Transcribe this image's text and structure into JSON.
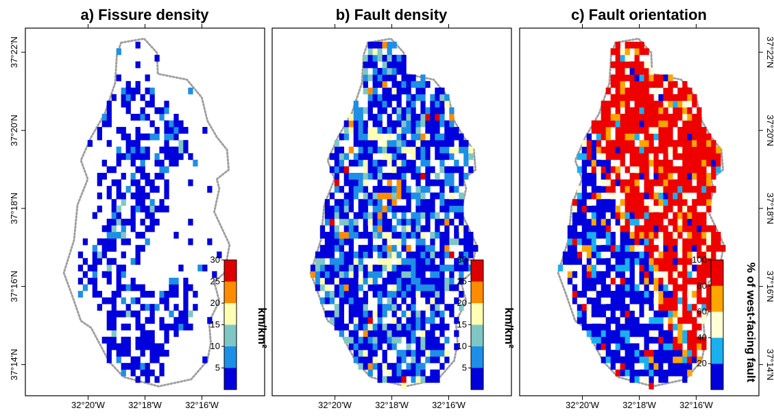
{
  "figure": {
    "x_tick_labels": [
      "32°20'W",
      "32°18'W",
      "32°16'W"
    ],
    "y_tick_labels": [
      "37°14'N",
      "37°16'N",
      "37°18'N",
      "37°20'N",
      "37°22'N"
    ]
  },
  "colors": {
    "frame": "#000000",
    "outline": "#a0a0a0",
    "density_scale": [
      "#0000dd",
      "#1e8fe6",
      "#7fc7c5",
      "#ffffb4",
      "#ff8c00",
      "#dd0000"
    ],
    "orientation_scale": [
      "#0000dd",
      "#1ab0f0",
      "#ffffd6",
      "#ffa500",
      "#ee0000"
    ]
  },
  "chart_data": [
    {
      "type": "heatmap",
      "title": "a) Fissure density",
      "xlim": [
        -32.37,
        -32.23
      ],
      "ylim": [
        37.22,
        37.377
      ],
      "x_ticks": [
        -32.3333,
        -32.3,
        -32.2667
      ],
      "y_ticks": [
        37.2333,
        37.2667,
        37.3,
        37.3333,
        37.3667
      ],
      "cell_size_deg": 0.0028,
      "colorbar": {
        "label": "km/km²",
        "ticks": [
          5,
          10,
          15,
          20,
          25,
          30
        ],
        "tick_labels": [
          "5",
          "10",
          "15",
          "20",
          "25",
          "30"
        ],
        "bins": [
          0,
          5,
          10,
          15,
          20,
          25,
          30
        ]
      },
      "survey_outline": [
        [
          -32.314,
          37.3708
        ],
        [
          -32.3005,
          37.3725
        ],
        [
          -32.293,
          37.3665
        ],
        [
          -32.2925,
          37.3575
        ],
        [
          -32.2755,
          37.355
        ],
        [
          -32.2668,
          37.3474
        ],
        [
          -32.2635,
          37.3375
        ],
        [
          -32.258,
          37.3305
        ],
        [
          -32.252,
          37.325
        ],
        [
          -32.251,
          37.3165
        ],
        [
          -32.258,
          37.3125
        ],
        [
          -32.2565,
          37.3085
        ],
        [
          -32.2595,
          37.2985
        ],
        [
          -32.2505,
          37.2845
        ],
        [
          -32.2535,
          37.2725
        ],
        [
          -32.2595,
          37.2685
        ],
        [
          -32.2565,
          37.2605
        ],
        [
          -32.2625,
          37.2515
        ],
        [
          -32.2615,
          37.2425
        ],
        [
          -32.2635,
          37.235
        ],
        [
          -32.273,
          37.227
        ],
        [
          -32.292,
          37.224
        ],
        [
          -32.3125,
          37.228
        ],
        [
          -32.321,
          37.2346
        ],
        [
          -32.3315,
          37.249
        ],
        [
          -32.3375,
          37.252
        ],
        [
          -32.3425,
          37.2625
        ],
        [
          -32.3475,
          37.2725
        ],
        [
          -32.3415,
          37.2865
        ],
        [
          -32.3395,
          37.3015
        ],
        [
          -32.3335,
          37.3125
        ],
        [
          -32.3375,
          37.3205
        ],
        [
          -32.3315,
          37.3305
        ],
        [
          -32.3235,
          37.3405
        ],
        [
          -32.3175,
          37.3535
        ],
        [
          -32.3165,
          37.3655
        ]
      ],
      "seed_cells": [
        [
          -32.325,
          37.362,
          1
        ],
        [
          -32.318,
          37.338,
          1
        ],
        [
          -32.305,
          37.341,
          1
        ],
        [
          -32.302,
          37.322,
          2
        ],
        [
          -32.295,
          37.334,
          1
        ],
        [
          -32.286,
          37.328,
          1
        ],
        [
          -32.316,
          37.311,
          1
        ],
        [
          -32.298,
          37.306,
          1
        ],
        [
          -32.305,
          37.295,
          1
        ],
        [
          -32.312,
          37.289,
          1
        ],
        [
          -32.328,
          37.275,
          1
        ],
        [
          -32.316,
          37.262,
          2
        ],
        [
          -32.302,
          37.255,
          1
        ],
        [
          -32.311,
          37.244,
          1
        ],
        [
          -32.298,
          37.238,
          1
        ],
        [
          -32.322,
          37.232,
          1
        ],
        [
          -32.342,
          37.233,
          2
        ],
        [
          -32.281,
          37.257,
          1
        ]
      ]
    },
    {
      "type": "heatmap",
      "title": "b) Fault density",
      "xlim": [
        -32.37,
        -32.23
      ],
      "ylim": [
        37.22,
        37.377
      ],
      "x_ticks": [
        -32.3333,
        -32.3,
        -32.2667
      ],
      "y_ticks": [
        37.2333,
        37.2667,
        37.3,
        37.3333,
        37.3667
      ],
      "cell_size_deg": 0.0028,
      "colorbar": {
        "label": "km/km²",
        "ticks": [
          5,
          10,
          15,
          20,
          25,
          30
        ],
        "tick_labels": [
          "5",
          "10",
          "15",
          "20",
          "25",
          "30"
        ],
        "bins": [
          0,
          5,
          10,
          15,
          20,
          25,
          30
        ]
      },
      "survey_outline": [
        [
          -32.314,
          37.3708
        ],
        [
          -32.3005,
          37.3725
        ],
        [
          -32.293,
          37.3665
        ],
        [
          -32.2925,
          37.3575
        ],
        [
          -32.2755,
          37.355
        ],
        [
          -32.2668,
          37.3474
        ],
        [
          -32.2635,
          37.3375
        ],
        [
          -32.258,
          37.3305
        ],
        [
          -32.252,
          37.325
        ],
        [
          -32.251,
          37.3165
        ],
        [
          -32.258,
          37.3125
        ],
        [
          -32.2565,
          37.3085
        ],
        [
          -32.2595,
          37.2985
        ],
        [
          -32.2505,
          37.2845
        ],
        [
          -32.2535,
          37.2725
        ],
        [
          -32.2595,
          37.2685
        ],
        [
          -32.2565,
          37.2605
        ],
        [
          -32.2625,
          37.2515
        ],
        [
          -32.2615,
          37.2425
        ],
        [
          -32.2635,
          37.235
        ],
        [
          -32.273,
          37.227
        ],
        [
          -32.292,
          37.224
        ],
        [
          -32.3125,
          37.228
        ],
        [
          -32.321,
          37.2346
        ],
        [
          -32.3315,
          37.249
        ],
        [
          -32.3375,
          37.252
        ],
        [
          -32.3425,
          37.2625
        ],
        [
          -32.3475,
          37.2725
        ],
        [
          -32.3415,
          37.2865
        ],
        [
          -32.3395,
          37.3015
        ],
        [
          -32.3335,
          37.3125
        ],
        [
          -32.3375,
          37.3205
        ],
        [
          -32.3315,
          37.3305
        ],
        [
          -32.3235,
          37.3405
        ],
        [
          -32.3175,
          37.3535
        ],
        [
          -32.3165,
          37.3655
        ]
      ],
      "seed_cells": [
        [
          -32.302,
          37.352,
          1
        ],
        [
          -32.288,
          37.338,
          2
        ],
        [
          -32.276,
          37.334,
          1
        ],
        [
          -32.297,
          37.326,
          3
        ],
        [
          -32.312,
          37.31,
          2
        ],
        [
          -32.302,
          37.302,
          4
        ],
        [
          -32.294,
          37.297,
          2
        ],
        [
          -32.318,
          37.29,
          1
        ],
        [
          -32.305,
          37.278,
          3
        ],
        [
          -32.316,
          37.27,
          2
        ],
        [
          -32.299,
          37.265,
          2
        ],
        [
          -32.31,
          37.25,
          1
        ],
        [
          -32.323,
          37.236,
          1
        ],
        [
          -32.285,
          37.31,
          2
        ],
        [
          -32.27,
          37.3,
          1
        ],
        [
          -32.3,
          37.245,
          2
        ]
      ]
    },
    {
      "type": "heatmap",
      "title": "c) Fault orientation",
      "xlim": [
        -32.37,
        -32.23
      ],
      "ylim": [
        37.22,
        37.377
      ],
      "x_ticks": [
        -32.3333,
        -32.3,
        -32.2667
      ],
      "y_ticks": [
        37.2333,
        37.2667,
        37.3,
        37.3333,
        37.3667
      ],
      "cell_size_deg": 0.0028,
      "colorbar": {
        "label": "% of west-facing fault",
        "ticks": [
          20,
          40,
          60,
          80,
          100
        ],
        "tick_labels": [
          "20",
          "40",
          "60",
          "80",
          "100"
        ],
        "bins": [
          0,
          20,
          40,
          60,
          80,
          100
        ]
      },
      "survey_outline": [
        [
          -32.314,
          37.3708
        ],
        [
          -32.3005,
          37.3725
        ],
        [
          -32.293,
          37.3665
        ],
        [
          -32.2925,
          37.3575
        ],
        [
          -32.2755,
          37.355
        ],
        [
          -32.2668,
          37.3474
        ],
        [
          -32.2635,
          37.3375
        ],
        [
          -32.258,
          37.3305
        ],
        [
          -32.252,
          37.325
        ],
        [
          -32.251,
          37.3165
        ],
        [
          -32.258,
          37.3125
        ],
        [
          -32.2565,
          37.3085
        ],
        [
          -32.2595,
          37.2985
        ],
        [
          -32.2505,
          37.2845
        ],
        [
          -32.2535,
          37.2725
        ],
        [
          -32.2595,
          37.2685
        ],
        [
          -32.2565,
          37.2605
        ],
        [
          -32.2625,
          37.2515
        ],
        [
          -32.2615,
          37.2425
        ],
        [
          -32.2635,
          37.235
        ],
        [
          -32.273,
          37.227
        ],
        [
          -32.292,
          37.224
        ],
        [
          -32.3125,
          37.228
        ],
        [
          -32.321,
          37.2346
        ],
        [
          -32.3315,
          37.249
        ],
        [
          -32.3375,
          37.252
        ],
        [
          -32.3425,
          37.2625
        ],
        [
          -32.3475,
          37.2725
        ],
        [
          -32.3415,
          37.2865
        ],
        [
          -32.3395,
          37.3015
        ],
        [
          -32.3335,
          37.3125
        ],
        [
          -32.3375,
          37.3205
        ],
        [
          -32.3315,
          37.3305
        ],
        [
          -32.3235,
          37.3405
        ],
        [
          -32.3175,
          37.3535
        ],
        [
          -32.3165,
          37.3655
        ]
      ],
      "seed_cells": [
        [
          -32.298,
          37.342,
          1
        ],
        [
          -32.289,
          37.334,
          3
        ],
        [
          -32.278,
          37.33,
          5
        ],
        [
          -32.273,
          37.322,
          5
        ],
        [
          -32.268,
          37.312,
          5
        ],
        [
          -32.288,
          37.31,
          5
        ],
        [
          -32.296,
          37.318,
          5
        ],
        [
          -32.282,
          37.298,
          5
        ],
        [
          -32.3,
          37.28,
          5
        ],
        [
          -32.305,
          37.265,
          5
        ],
        [
          -32.292,
          37.255,
          5
        ],
        [
          -32.312,
          37.25,
          5
        ],
        [
          -32.3,
          37.24,
          5
        ],
        [
          -32.315,
          37.3,
          1
        ],
        [
          -32.31,
          37.33,
          1
        ],
        [
          -32.294,
          37.27,
          4
        ]
      ]
    }
  ]
}
